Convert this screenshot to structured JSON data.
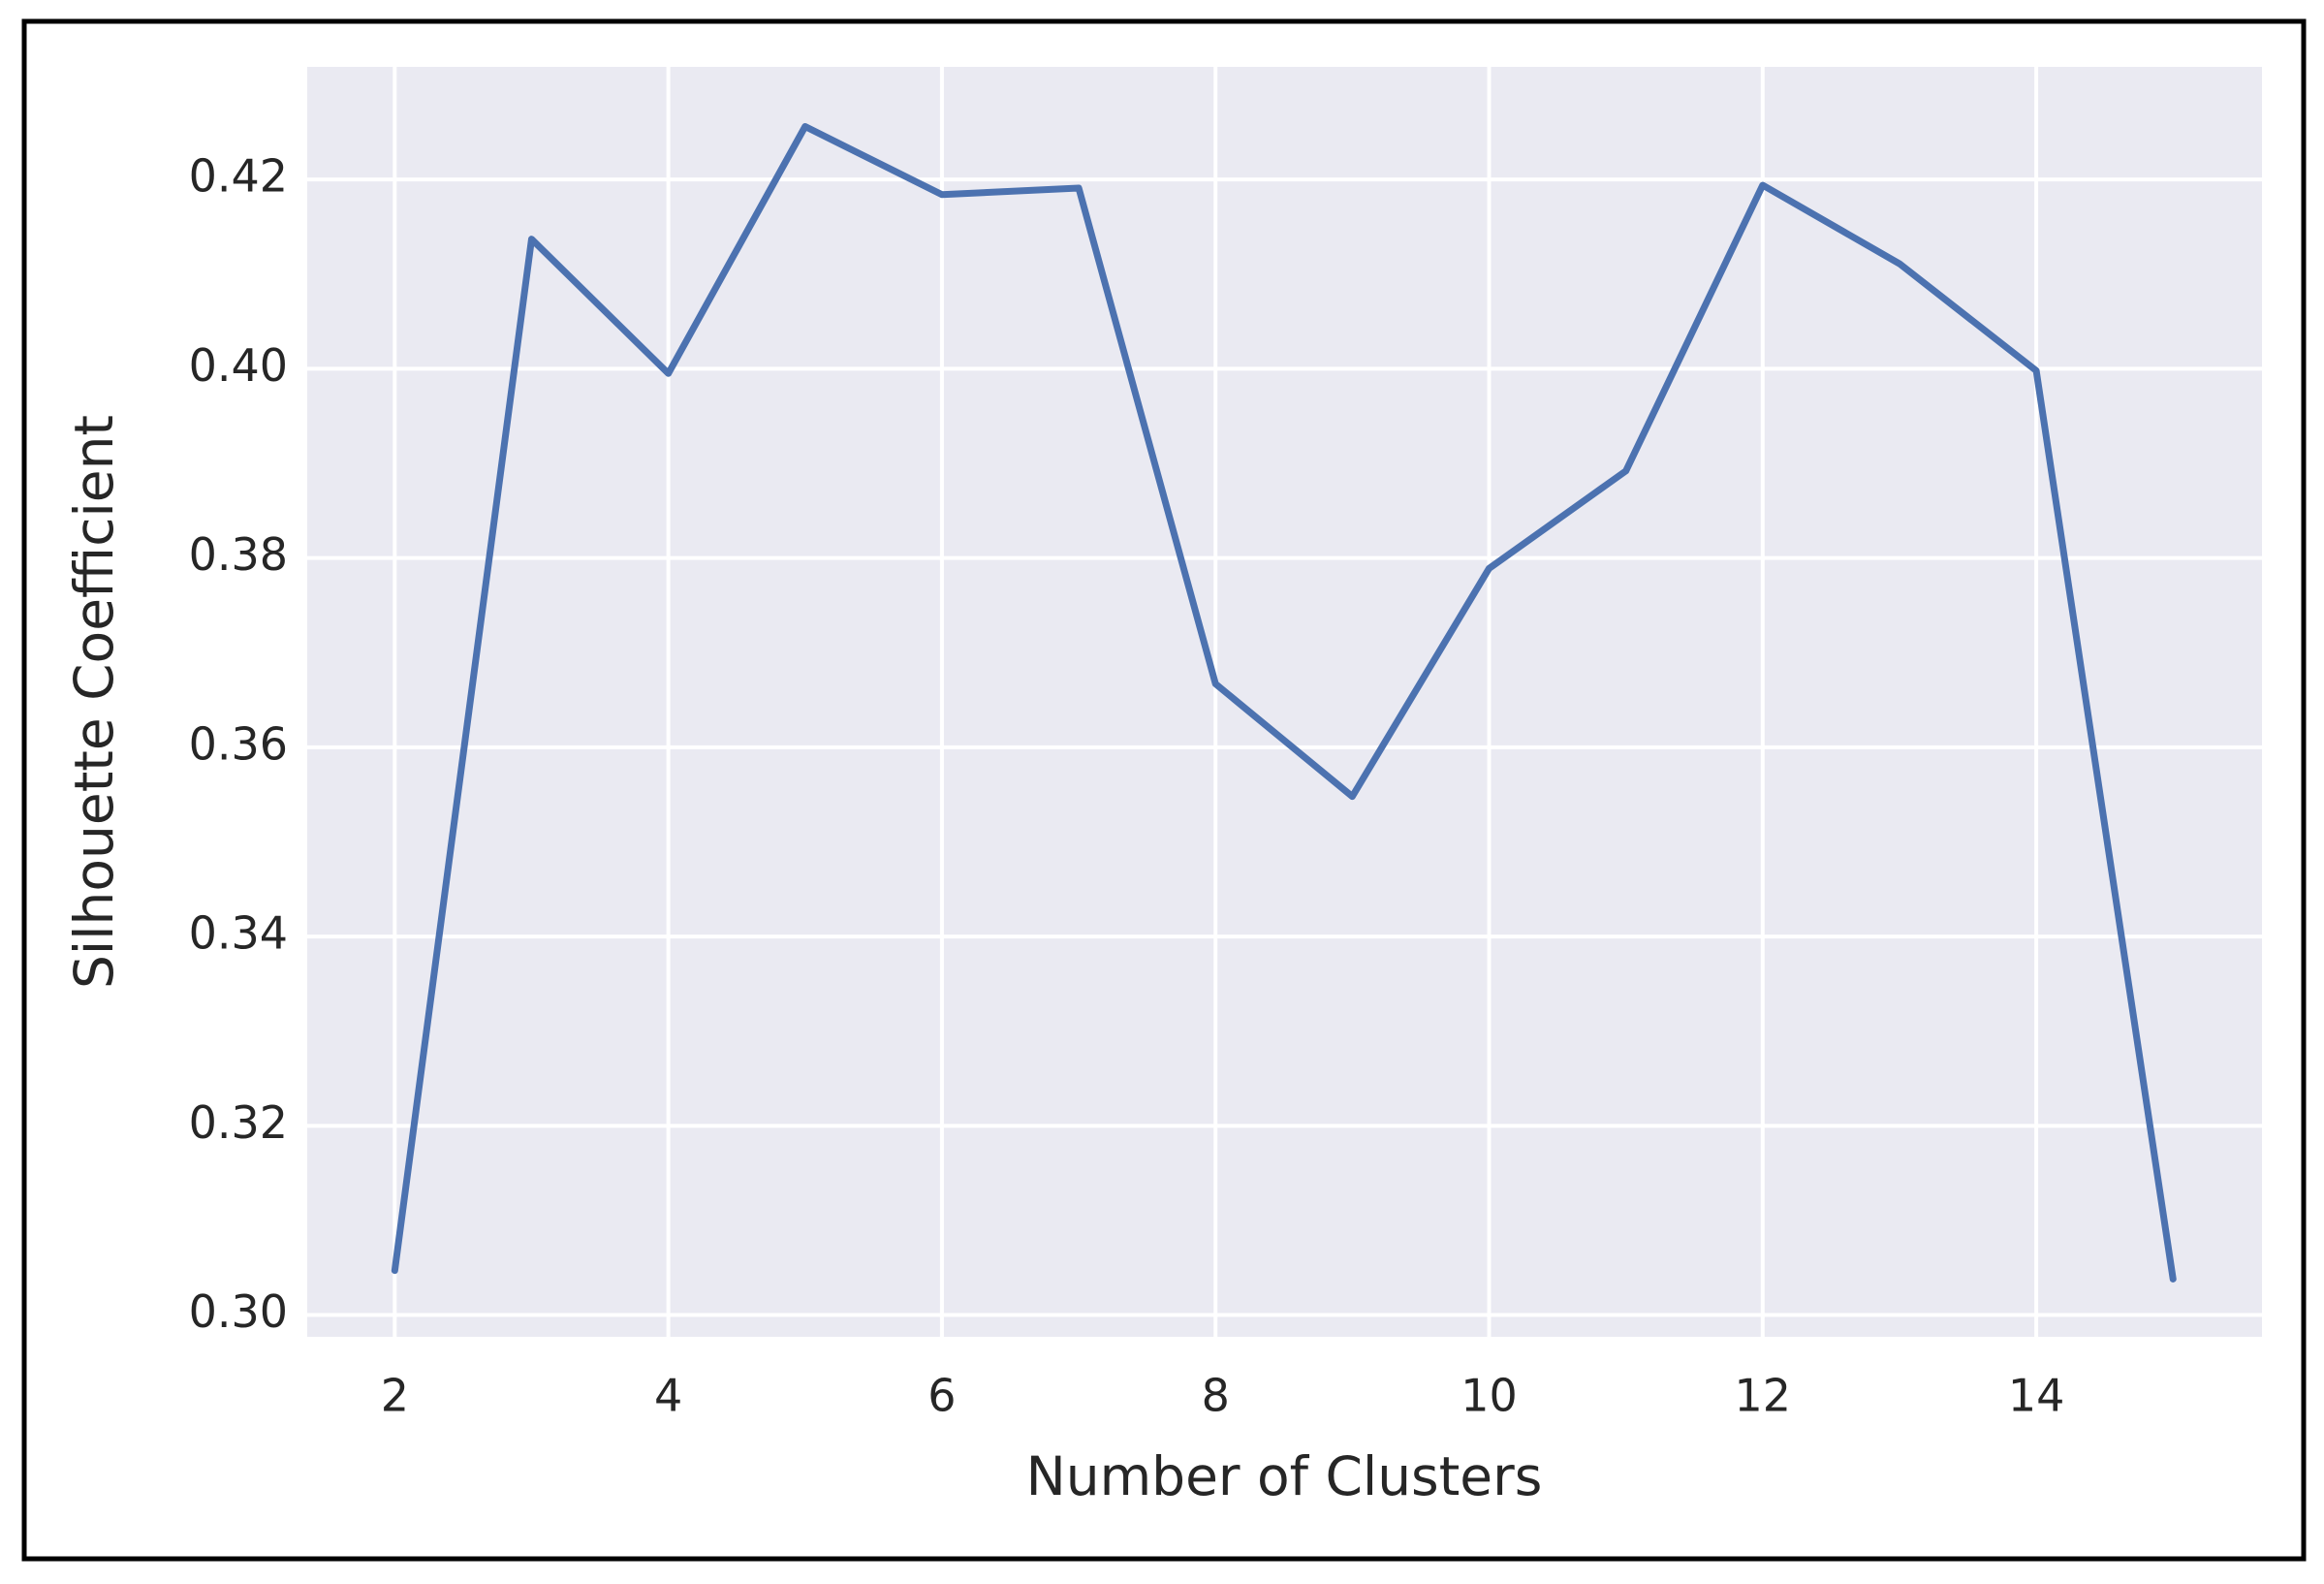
{
  "chart_data": {
    "type": "line",
    "xlabel": "Number of Clusters",
    "ylabel": "Silhouette Coefficient",
    "x": [
      2,
      3,
      4,
      5,
      6,
      7,
      8,
      9,
      10,
      11,
      12,
      13,
      14,
      15
    ],
    "series": [
      {
        "color": "#4c72b0",
        "values": [
          0.3047,
          0.4137,
          0.3995,
          0.4256,
          0.4184,
          0.4191,
          0.3667,
          0.3548,
          0.3789,
          0.3892,
          0.4194,
          0.4111,
          0.3998,
          0.3038
        ]
      }
    ],
    "xlim": [
      1.36,
      15.65
    ],
    "ylim": [
      0.2977,
      0.4319
    ],
    "xticks": [
      2,
      4,
      6,
      8,
      10,
      12,
      14
    ],
    "yticks": [
      {
        "value": 0.3,
        "label": "0.30"
      },
      0.32,
      0.34,
      0.36,
      0.38,
      {
        "value": 0.4,
        "label": "0.40"
      },
      0.42
    ],
    "grid": true,
    "background": "#eaeaf2"
  }
}
